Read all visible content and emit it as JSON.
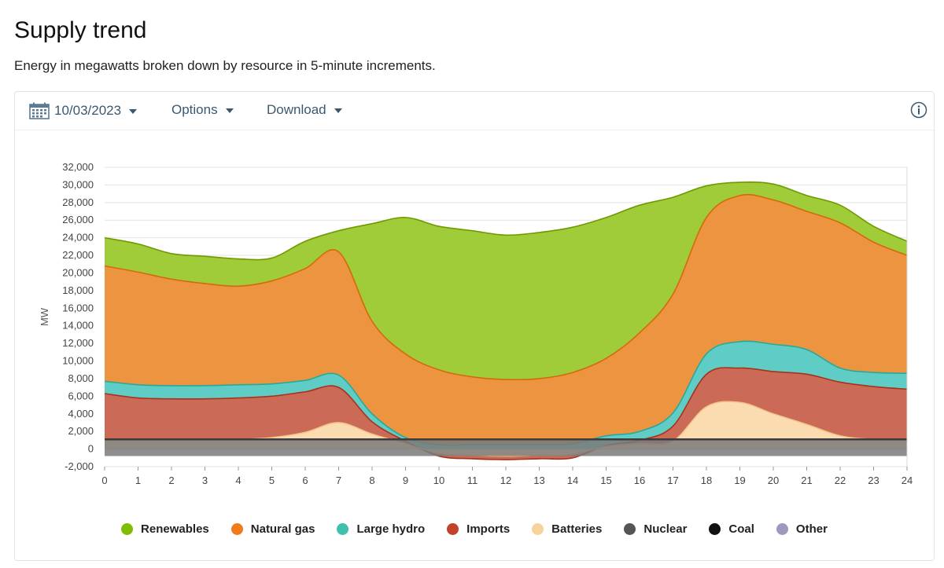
{
  "page": {
    "title": "Supply trend",
    "subtitle": "Energy in megawatts broken down by resource in 5-minute increments."
  },
  "toolbar": {
    "date": "10/03/2023",
    "options_label": "Options",
    "download_label": "Download",
    "calendar_icon": "calendar-icon",
    "info_icon": "info-icon"
  },
  "chart_data": {
    "type": "area",
    "stacked": true,
    "title": "",
    "xlabel": "",
    "ylabel": "MW",
    "xlim": [
      0,
      24
    ],
    "ylim": [
      -2000,
      32000
    ],
    "x_ticks": [
      "0",
      "1",
      "2",
      "3",
      "4",
      "5",
      "6",
      "7",
      "8",
      "9",
      "10",
      "11",
      "12",
      "13",
      "14",
      "15",
      "16",
      "17",
      "18",
      "19",
      "20",
      "21",
      "22",
      "23",
      "24"
    ],
    "y_ticks": [
      "-2,000",
      "0",
      "2,000",
      "4,000",
      "6,000",
      "8,000",
      "10,000",
      "12,000",
      "14,000",
      "16,000",
      "18,000",
      "20,000",
      "22,000",
      "24,000",
      "26,000",
      "28,000",
      "30,000",
      "32,000"
    ],
    "y_tick_values": [
      -2000,
      0,
      2000,
      4000,
      6000,
      8000,
      10000,
      12000,
      14000,
      16000,
      18000,
      20000,
      22000,
      24000,
      26000,
      28000,
      30000,
      32000
    ],
    "grid": true,
    "legend_position": "bottom",
    "x": [
      0,
      1,
      2,
      3,
      4,
      5,
      6,
      7,
      8,
      9,
      10,
      11,
      12,
      13,
      14,
      15,
      16,
      17,
      18,
      19,
      20,
      21,
      22,
      23,
      24
    ],
    "cumulative_top": {
      "nuclear": [
        1100,
        1100,
        1100,
        1100,
        1100,
        1100,
        1100,
        1100,
        1100,
        1100,
        1100,
        1100,
        1100,
        1100,
        1100,
        1100,
        1100,
        1100,
        1100,
        1100,
        1100,
        1100,
        1100,
        1100,
        1100
      ],
      "batteries": [
        1100,
        1100,
        1100,
        1100,
        1100,
        1300,
        1900,
        3000,
        1700,
        600,
        -500,
        -700,
        -800,
        -700,
        -600,
        300,
        600,
        900,
        4800,
        5300,
        4000,
        2800,
        1500,
        1100,
        1100
      ],
      "imports": [
        6300,
        5800,
        5700,
        5700,
        5800,
        6000,
        6500,
        7000,
        3100,
        900,
        -800,
        -1100,
        -1200,
        -1100,
        -1000,
        400,
        1000,
        2600,
        8500,
        9200,
        8800,
        8500,
        7600,
        7100,
        6800
      ],
      "large_hydro": [
        7700,
        7300,
        7200,
        7200,
        7300,
        7400,
        7800,
        8400,
        4000,
        1300,
        500,
        500,
        500,
        500,
        600,
        1500,
        2000,
        4100,
        10800,
        12200,
        11900,
        11300,
        9200,
        8700,
        8600
      ],
      "natural_gas": [
        20800,
        20100,
        19300,
        18800,
        18500,
        19100,
        20500,
        22400,
        14500,
        10800,
        9000,
        8200,
        7900,
        8000,
        8700,
        10300,
        13200,
        17600,
        26300,
        28800,
        28300,
        27000,
        25700,
        23500,
        22000
      ],
      "renewables": [
        24000,
        23300,
        22200,
        21900,
        21600,
        21700,
        23600,
        24800,
        25600,
        26300,
        25300,
        24800,
        24300,
        24600,
        25200,
        26300,
        27700,
        28600,
        29900,
        30300,
        30100,
        28800,
        27700,
        25300,
        23600
      ]
    }
  },
  "legend": [
    {
      "label": "Renewables",
      "color": "#82bc00",
      "icon": "legend-dot-icon"
    },
    {
      "label": "Natural gas",
      "color": "#ef7b1a",
      "icon": "legend-dot-icon"
    },
    {
      "label": "Large hydro",
      "color": "#3fbfae",
      "icon": "legend-dot-icon"
    },
    {
      "label": "Imports",
      "color": "#c2422a",
      "icon": "legend-dot-icon"
    },
    {
      "label": "Batteries",
      "color": "#f8d29c",
      "icon": "legend-dot-icon"
    },
    {
      "label": "Nuclear",
      "color": "#555555",
      "icon": "legend-dot-icon"
    },
    {
      "label": "Coal",
      "color": "#111111",
      "icon": "legend-dot-icon"
    },
    {
      "label": "Other",
      "color": "#9e99be",
      "icon": "legend-dot-icon"
    }
  ]
}
